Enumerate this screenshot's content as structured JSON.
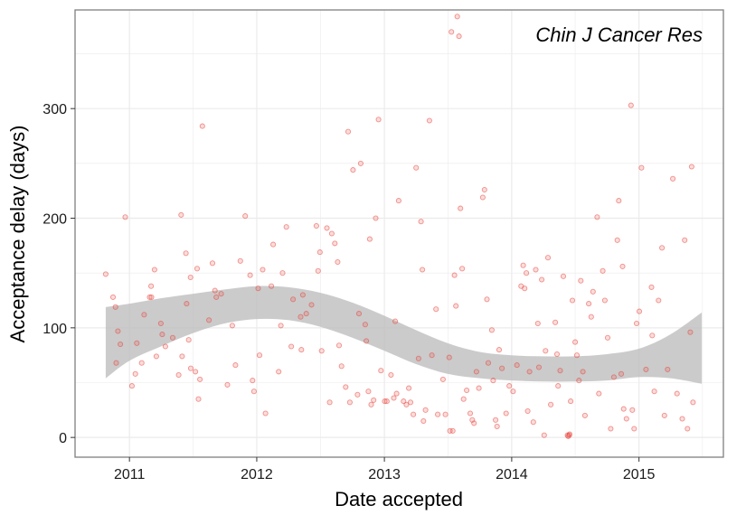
{
  "chart_data": {
    "type": "scatter",
    "title": "",
    "annotation": "Chin J Cancer Res",
    "xlabel": "Date accepted",
    "ylabel": "Acceptance delay (days)",
    "x_ticks": [
      "2011",
      "2012",
      "2013",
      "2014",
      "2015"
    ],
    "y_ticks": [
      0,
      100,
      200,
      300
    ],
    "xlim": [
      "2010-07-29",
      "2015-08-31"
    ],
    "ylim": [
      -18,
      390
    ],
    "grid": true,
    "legend": "none",
    "colors": {
      "points": "#e8413a",
      "band": "#bdbdbd",
      "grid": "#ebebeb",
      "frame": "#7f7f7f"
    },
    "points": [
      {
        "x": "2010-10-25",
        "y": 149
      },
      {
        "x": "2010-11-15",
        "y": 128
      },
      {
        "x": "2010-11-22",
        "y": 119
      },
      {
        "x": "2010-11-29",
        "y": 97
      },
      {
        "x": "2010-12-06",
        "y": 85
      },
      {
        "x": "2010-11-24",
        "y": 68
      },
      {
        "x": "2010-12-20",
        "y": 201
      },
      {
        "x": "2011-01-08",
        "y": 47
      },
      {
        "x": "2011-01-18",
        "y": 58
      },
      {
        "x": "2011-02-05",
        "y": 68
      },
      {
        "x": "2011-01-22",
        "y": 86
      },
      {
        "x": "2011-02-12",
        "y": 112
      },
      {
        "x": "2011-02-28",
        "y": 128
      },
      {
        "x": "2011-03-04",
        "y": 138
      },
      {
        "x": "2011-03-14",
        "y": 153
      },
      {
        "x": "2011-03-19",
        "y": 74
      },
      {
        "x": "2011-04-01",
        "y": 104
      },
      {
        "x": "2011-04-05",
        "y": 94
      },
      {
        "x": "2011-04-14",
        "y": 83
      },
      {
        "x": "2011-05-05",
        "y": 91
      },
      {
        "x": "2011-05-22",
        "y": 57
      },
      {
        "x": "2011-06-01",
        "y": 74
      },
      {
        "x": "2011-05-29",
        "y": 203
      },
      {
        "x": "2011-06-12",
        "y": 168
      },
      {
        "x": "2011-06-25",
        "y": 146
      },
      {
        "x": "2011-06-20",
        "y": 89
      },
      {
        "x": "2011-06-26",
        "y": 63
      },
      {
        "x": "2011-07-09",
        "y": 60
      },
      {
        "x": "2011-07-14",
        "y": 154
      },
      {
        "x": "2011-07-18",
        "y": 35
      },
      {
        "x": "2011-07-22",
        "y": 53
      },
      {
        "x": "2011-07-29",
        "y": 284
      },
      {
        "x": "2011-08-17",
        "y": 107
      },
      {
        "x": "2011-08-27",
        "y": 159
      },
      {
        "x": "2011-09-03",
        "y": 134
      },
      {
        "x": "2011-09-21",
        "y": 131
      },
      {
        "x": "2011-10-09",
        "y": 48
      },
      {
        "x": "2011-10-23",
        "y": 102
      },
      {
        "x": "2011-11-01",
        "y": 66
      },
      {
        "x": "2011-11-15",
        "y": 161
      },
      {
        "x": "2011-11-29",
        "y": 202
      },
      {
        "x": "2011-12-13",
        "y": 148
      },
      {
        "x": "2011-12-20",
        "y": 52
      },
      {
        "x": "2011-12-24",
        "y": 42
      },
      {
        "x": "2012-01-05",
        "y": 136
      },
      {
        "x": "2012-01-09",
        "y": 75
      },
      {
        "x": "2012-01-18",
        "y": 153
      },
      {
        "x": "2012-01-26",
        "y": 22
      },
      {
        "x": "2012-02-12",
        "y": 138
      },
      {
        "x": "2012-02-17",
        "y": 176
      },
      {
        "x": "2012-03-04",
        "y": 60
      },
      {
        "x": "2012-03-15",
        "y": 150
      },
      {
        "x": "2012-03-26",
        "y": 192
      },
      {
        "x": "2012-04-09",
        "y": 83
      },
      {
        "x": "2012-04-14",
        "y": 126
      },
      {
        "x": "2012-05-08",
        "y": 80
      },
      {
        "x": "2012-05-12",
        "y": 130
      },
      {
        "x": "2012-05-22",
        "y": 113
      },
      {
        "x": "2012-06-06",
        "y": 121
      },
      {
        "x": "2012-06-20",
        "y": 193
      },
      {
        "x": "2012-06-25",
        "y": 152
      },
      {
        "x": "2012-06-30",
        "y": 169
      },
      {
        "x": "2012-07-05",
        "y": 79
      },
      {
        "x": "2012-07-20",
        "y": 191
      },
      {
        "x": "2012-07-28",
        "y": 32
      },
      {
        "x": "2012-08-03",
        "y": 186
      },
      {
        "x": "2012-08-12",
        "y": 177
      },
      {
        "x": "2012-08-20",
        "y": 160
      },
      {
        "x": "2012-08-24",
        "y": 84
      },
      {
        "x": "2012-08-31",
        "y": 65
      },
      {
        "x": "2012-09-12",
        "y": 46
      },
      {
        "x": "2012-09-19",
        "y": 279
      },
      {
        "x": "2012-09-24",
        "y": 32
      },
      {
        "x": "2012-10-03",
        "y": 244
      },
      {
        "x": "2012-10-16",
        "y": 39
      },
      {
        "x": "2012-10-20",
        "y": 113
      },
      {
        "x": "2012-10-25",
        "y": 250
      },
      {
        "x": "2012-11-07",
        "y": 103
      },
      {
        "x": "2012-11-10",
        "y": 88
      },
      {
        "x": "2012-11-16",
        "y": 42
      },
      {
        "x": "2012-11-20",
        "y": 181
      },
      {
        "x": "2012-12-01",
        "y": 34
      },
      {
        "x": "2012-12-07",
        "y": 200
      },
      {
        "x": "2012-12-15",
        "y": 290
      },
      {
        "x": "2012-12-22",
        "y": 61
      },
      {
        "x": "2013-01-02",
        "y": 33
      },
      {
        "x": "2013-01-08",
        "y": 33
      },
      {
        "x": "2013-01-20",
        "y": 57
      },
      {
        "x": "2013-02-01",
        "y": 106
      },
      {
        "x": "2013-02-05",
        "y": 40
      },
      {
        "x": "2013-02-11",
        "y": 216
      },
      {
        "x": "2013-02-25",
        "y": 33
      },
      {
        "x": "2013-03-12",
        "y": 45
      },
      {
        "x": "2013-03-17",
        "y": 32
      },
      {
        "x": "2013-03-25",
        "y": 21
      },
      {
        "x": "2013-04-02",
        "y": 246
      },
      {
        "x": "2013-04-09",
        "y": 72
      },
      {
        "x": "2013-04-16",
        "y": 197
      },
      {
        "x": "2013-04-20",
        "y": 153
      },
      {
        "x": "2013-04-23",
        "y": 15
      },
      {
        "x": "2013-04-29",
        "y": 25
      },
      {
        "x": "2013-05-10",
        "y": 289
      },
      {
        "x": "2013-05-17",
        "y": 75
      },
      {
        "x": "2013-05-29",
        "y": 117
      },
      {
        "x": "2013-06-03",
        "y": 21
      },
      {
        "x": "2013-06-18",
        "y": 53
      },
      {
        "x": "2013-06-25",
        "y": 21
      },
      {
        "x": "2013-07-06",
        "y": 73
      },
      {
        "x": "2013-07-08",
        "y": 6
      },
      {
        "x": "2013-07-12",
        "y": 370
      },
      {
        "x": "2013-07-16",
        "y": 6
      },
      {
        "x": "2013-07-21",
        "y": 148
      },
      {
        "x": "2013-07-25",
        "y": 120
      },
      {
        "x": "2013-07-29",
        "y": 384
      },
      {
        "x": "2013-08-03",
        "y": 366
      },
      {
        "x": "2013-08-07",
        "y": 209
      },
      {
        "x": "2013-08-12",
        "y": 154
      },
      {
        "x": "2013-08-16",
        "y": 35
      },
      {
        "x": "2013-08-25",
        "y": 43
      },
      {
        "x": "2013-09-04",
        "y": 22
      },
      {
        "x": "2013-09-15",
        "y": 13
      },
      {
        "x": "2013-09-22",
        "y": 60
      },
      {
        "x": "2013-09-29",
        "y": 45
      },
      {
        "x": "2013-10-10",
        "y": 219
      },
      {
        "x": "2013-10-15",
        "y": 226
      },
      {
        "x": "2013-10-22",
        "y": 126
      },
      {
        "x": "2013-10-26",
        "y": 68
      },
      {
        "x": "2013-11-05",
        "y": 98
      },
      {
        "x": "2013-11-09",
        "y": 52
      },
      {
        "x": "2013-11-16",
        "y": 16
      },
      {
        "x": "2013-11-20",
        "y": 10
      },
      {
        "x": "2013-11-26",
        "y": 80
      },
      {
        "x": "2013-12-04",
        "y": 63
      },
      {
        "x": "2013-12-16",
        "y": 22
      },
      {
        "x": "2013-12-25",
        "y": 47
      },
      {
        "x": "2014-01-05",
        "y": 42
      },
      {
        "x": "2014-01-16",
        "y": 66
      },
      {
        "x": "2014-01-28",
        "y": 138
      },
      {
        "x": "2014-02-03",
        "y": 157
      },
      {
        "x": "2014-02-07",
        "y": 136
      },
      {
        "x": "2014-02-12",
        "y": 150
      },
      {
        "x": "2014-02-16",
        "y": 24
      },
      {
        "x": "2014-02-21",
        "y": 60
      },
      {
        "x": "2014-03-04",
        "y": 14
      },
      {
        "x": "2014-03-11",
        "y": 153
      },
      {
        "x": "2014-03-17",
        "y": 104
      },
      {
        "x": "2014-03-28",
        "y": 144
      },
      {
        "x": "2014-04-04",
        "y": 2
      },
      {
        "x": "2014-04-08",
        "y": 79
      },
      {
        "x": "2014-04-15",
        "y": 164
      },
      {
        "x": "2014-04-23",
        "y": 30
      },
      {
        "x": "2014-05-06",
        "y": 105
      },
      {
        "x": "2014-05-11",
        "y": 76
      },
      {
        "x": "2014-05-14",
        "y": 47
      },
      {
        "x": "2014-05-20",
        "y": 61
      },
      {
        "x": "2014-05-29",
        "y": 147
      },
      {
        "x": "2014-06-10",
        "y": 2
      },
      {
        "x": "2014-06-16",
        "y": 3
      },
      {
        "x": "2014-06-19",
        "y": 33
      },
      {
        "x": "2014-06-24",
        "y": 125
      },
      {
        "x": "2014-07-02",
        "y": 87
      },
      {
        "x": "2014-07-07",
        "y": 75
      },
      {
        "x": "2014-07-13",
        "y": 52
      },
      {
        "x": "2014-07-18",
        "y": 143
      },
      {
        "x": "2014-07-24",
        "y": 60
      },
      {
        "x": "2014-07-30",
        "y": 20
      },
      {
        "x": "2014-08-10",
        "y": 122
      },
      {
        "x": "2014-08-17",
        "y": 110
      },
      {
        "x": "2014-08-22",
        "y": 133
      },
      {
        "x": "2014-09-03",
        "y": 201
      },
      {
        "x": "2014-09-08",
        "y": 40
      },
      {
        "x": "2014-09-19",
        "y": 152
      },
      {
        "x": "2014-09-25",
        "y": 125
      },
      {
        "x": "2014-10-03",
        "y": 91
      },
      {
        "x": "2014-10-12",
        "y": 8
      },
      {
        "x": "2014-10-21",
        "y": 55
      },
      {
        "x": "2014-10-31",
        "y": 180
      },
      {
        "x": "2014-11-04",
        "y": 216
      },
      {
        "x": "2014-11-11",
        "y": 58
      },
      {
        "x": "2014-11-15",
        "y": 156
      },
      {
        "x": "2014-11-18",
        "y": 26
      },
      {
        "x": "2014-11-26",
        "y": 17
      },
      {
        "x": "2014-12-09",
        "y": 303
      },
      {
        "x": "2014-12-13",
        "y": 25
      },
      {
        "x": "2014-12-18",
        "y": 8
      },
      {
        "x": "2014-12-25",
        "y": 104
      },
      {
        "x": "2015-01-02",
        "y": 115
      },
      {
        "x": "2015-01-08",
        "y": 246
      },
      {
        "x": "2015-01-21",
        "y": 62
      },
      {
        "x": "2015-02-06",
        "y": 137
      },
      {
        "x": "2015-02-08",
        "y": 93
      },
      {
        "x": "2015-02-14",
        "y": 42
      },
      {
        "x": "2015-02-26",
        "y": 125
      },
      {
        "x": "2015-03-08",
        "y": 173
      },
      {
        "x": "2015-03-15",
        "y": 20
      },
      {
        "x": "2015-03-24",
        "y": 62
      },
      {
        "x": "2015-04-08",
        "y": 236
      },
      {
        "x": "2015-04-20",
        "y": 40
      },
      {
        "x": "2015-05-05",
        "y": 17
      },
      {
        "x": "2015-05-12",
        "y": 180
      },
      {
        "x": "2015-05-20",
        "y": 8
      },
      {
        "x": "2015-06-01",
        "y": 247
      },
      {
        "x": "2015-06-05",
        "y": 32
      },
      {
        "x": "2015-05-28",
        "y": 96
      },
      {
        "x": "2011-03-05",
        "y": 128
      },
      {
        "x": "2011-06-14",
        "y": 122
      },
      {
        "x": "2011-09-07",
        "y": 128
      },
      {
        "x": "2012-03-10",
        "y": 102
      },
      {
        "x": "2012-05-06",
        "y": 110
      },
      {
        "x": "2013-01-28",
        "y": 36
      },
      {
        "x": "2013-03-05",
        "y": 30
      },
      {
        "x": "2013-09-10",
        "y": 16
      },
      {
        "x": "2014-06-12",
        "y": 1
      },
      {
        "x": "2014-06-15",
        "y": 2
      },
      {
        "x": "2014-03-20",
        "y": 64
      },
      {
        "x": "2012-11-24",
        "y": 30
      }
    ],
    "smooth": {
      "x": [
        "2010-10-25",
        "2011-01-01",
        "2011-04-01",
        "2011-07-01",
        "2011-10-01",
        "2012-01-01",
        "2012-04-01",
        "2012-07-01",
        "2012-10-01",
        "2013-01-01",
        "2013-04-01",
        "2013-07-01",
        "2013-10-01",
        "2014-01-01",
        "2014-04-01",
        "2014-07-01",
        "2014-10-01",
        "2015-01-01",
        "2015-04-01",
        "2015-06-30"
      ],
      "upper": [
        119,
        122,
        127,
        131,
        135,
        138,
        137,
        132,
        123,
        111,
        98,
        86,
        78,
        75,
        74,
        74,
        76,
        81,
        94,
        114
      ],
      "lower": [
        54,
        70,
        83,
        95,
        104,
        108,
        107,
        101,
        91,
        79,
        67,
        58,
        54,
        52,
        51,
        51,
        52,
        55,
        54,
        49
      ]
    }
  }
}
